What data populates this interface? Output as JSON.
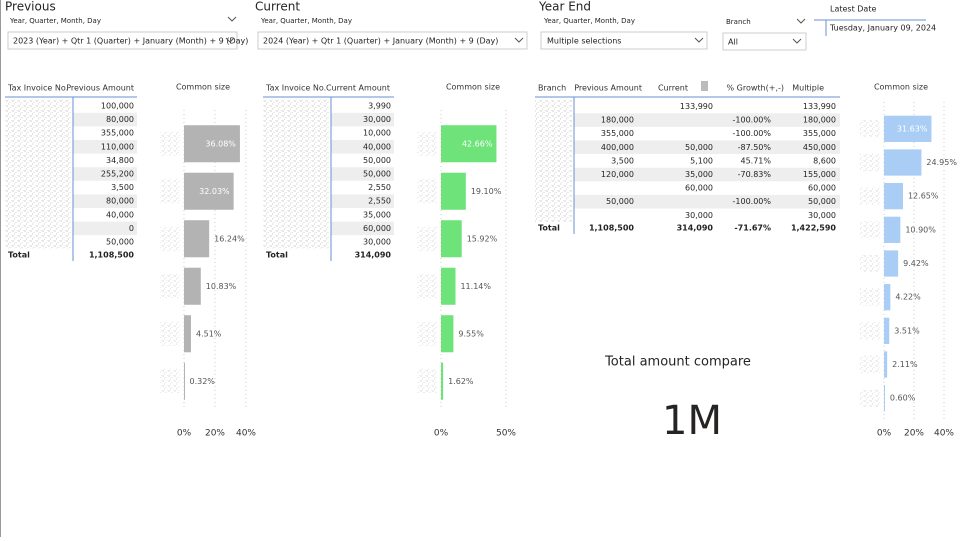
{
  "slicers": [
    {
      "title": "Previous",
      "field": "Year, Quarter, Month, Day",
      "value": "2023 (Year) + Qtr 1 (Quarter) + January (Month) + 9 (Day)"
    },
    {
      "title": "Current",
      "field": "Year, Quarter, Month, Day",
      "value": "2024 (Year) + Qtr 1 (Quarter) + January (Month) + 9 (Day)"
    },
    {
      "title": "Year End",
      "field": "Year, Quarter, Month, Day",
      "value": "Multiple selections"
    },
    {
      "field": "Branch",
      "value": "All"
    },
    {
      "title": "Latest Date",
      "value": "Tuesday, January 09, 2024"
    }
  ],
  "table_previous": {
    "headers": [
      "Tax Invoice No.",
      "Previous Amount"
    ],
    "rows": [
      "100,000",
      "80,000",
      "355,000",
      "110,000",
      "34,800",
      "255,200",
      "3,500",
      "80,000",
      "40,000",
      "0",
      "50,000"
    ],
    "total": [
      "Total",
      "1,108,500"
    ]
  },
  "table_current": {
    "headers": [
      "Tax Invoice No.",
      "Current Amount"
    ],
    "rows": [
      "3,990",
      "30,000",
      "10,000",
      "40,000",
      "50,000",
      "50,000",
      "2,550",
      "2,550",
      "35,000",
      "60,000",
      "30,000"
    ],
    "total": [
      "Total",
      "314,090"
    ]
  },
  "table_branch": {
    "headers": [
      "Branch",
      "Previous Amount",
      "Current",
      "% Growth(+,-)",
      "Multiple"
    ],
    "rows": [
      [
        null,
        "133,990",
        null,
        "133,990"
      ],
      [
        "180,000",
        null,
        "-100.00%",
        "180,000"
      ],
      [
        "355,000",
        null,
        "-100.00%",
        "355,000"
      ],
      [
        "400,000",
        "50,000",
        "-87.50%",
        "450,000"
      ],
      [
        "3,500",
        "5,100",
        "45.71%",
        "8,600"
      ],
      [
        "120,000",
        "35,000",
        "-70.83%",
        "155,000"
      ],
      [
        null,
        "60,000",
        null,
        "60,000"
      ],
      [
        "50,000",
        null,
        "-100.00%",
        "50,000"
      ],
      [
        null,
        "30,000",
        null,
        "30,000"
      ]
    ],
    "total": [
      "Total",
      "1,108,500",
      "314,090",
      "-71.67%",
      "1,422,590"
    ]
  },
  "card": {
    "title": "Total amount compare",
    "value": "1M"
  },
  "chart_data": [
    {
      "type": "bar",
      "orientation": "horizontal",
      "title": "Common size",
      "color": "#b3b3b3",
      "categories": [
        null,
        null,
        null,
        null,
        null,
        null
      ],
      "values": [
        36.08,
        32.03,
        16.24,
        10.83,
        4.51,
        0.32
      ],
      "value_labels": [
        "36.08%",
        "32.03%",
        "16.24%",
        "10.83%",
        "4.51%",
        "0.32%"
      ],
      "xlim": [
        0,
        40
      ],
      "xticks": [
        {
          "value": 0,
          "label": "0%"
        },
        {
          "value": 20,
          "label": "20%"
        },
        {
          "value": 40,
          "label": "40%"
        }
      ],
      "grid": true
    },
    {
      "type": "bar",
      "orientation": "horizontal",
      "title": "Common size",
      "color": "#6ee37a",
      "categories": [
        null,
        null,
        null,
        null,
        null,
        null
      ],
      "values": [
        42.66,
        19.1,
        15.92,
        11.14,
        9.55,
        1.62
      ],
      "value_labels": [
        "42.66%",
        "19.10%",
        "15.92%",
        "11.14%",
        "9.55%",
        "1.62%"
      ],
      "xlim": [
        0,
        50
      ],
      "xticks": [
        {
          "value": 0,
          "label": "0%"
        },
        {
          "value": 50,
          "label": "50%"
        }
      ],
      "grid": true
    },
    {
      "type": "bar",
      "orientation": "horizontal",
      "title": "Common size",
      "color": "#a9cdf5",
      "categories": [
        null,
        null,
        null,
        null,
        null,
        null,
        null,
        null,
        null
      ],
      "values": [
        31.63,
        24.95,
        12.65,
        10.9,
        9.42,
        4.22,
        3.51,
        2.11,
        0.6
      ],
      "value_labels": [
        "31.63%",
        "24.95%",
        "12.65%",
        "10.90%",
        "9.42%",
        "4.22%",
        "3.51%",
        "2.11%",
        "0.60%"
      ],
      "xlim": [
        0,
        40
      ],
      "xticks": [
        {
          "value": 0,
          "label": "0%"
        },
        {
          "value": 20,
          "label": "20%"
        },
        {
          "value": 40,
          "label": "40%"
        }
      ],
      "grid": true
    }
  ]
}
